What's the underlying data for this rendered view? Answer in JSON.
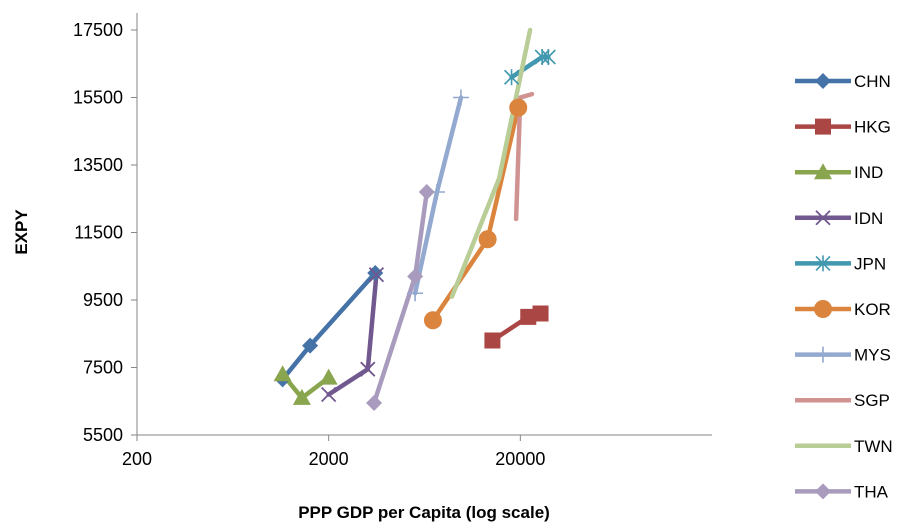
{
  "chart_data": {
    "type": "line",
    "xlabel": "PPP GDP per Capita (log scale)",
    "ylabel": "EXPY",
    "x_scale": "log",
    "xlim": [
      200,
      200000
    ],
    "ylim": [
      5500,
      17500
    ],
    "x_ticks": [
      "200",
      "2000",
      "20000"
    ],
    "y_ticks": [
      "5500",
      "7500",
      "9500",
      "11500",
      "13500",
      "15500",
      "17500"
    ],
    "grid": false,
    "legend_position": "right",
    "series": [
      {
        "name": "CHN",
        "color": "#4572A7",
        "marker": "diamond",
        "x": [
          1150,
          1600,
          3500
        ],
        "y": [
          7150,
          8150,
          10300
        ]
      },
      {
        "name": "HKG",
        "color": "#AA4643",
        "marker": "square",
        "x": [
          14300,
          22000,
          25500
        ],
        "y": [
          8300,
          9000,
          9100
        ]
      },
      {
        "name": "IND",
        "color": "#89A54E",
        "marker": "triangle",
        "x": [
          1150,
          1450,
          2000
        ],
        "y": [
          7300,
          6600,
          7200
        ]
      },
      {
        "name": "IDN",
        "color": "#71588F",
        "marker": "x",
        "x": [
          2000,
          3200,
          3550
        ],
        "y": [
          6700,
          7450,
          10250
        ]
      },
      {
        "name": "JPN",
        "color": "#4198AF",
        "marker": "asterisk",
        "x": [
          18000,
          26000,
          28000
        ],
        "y": [
          16100,
          16700,
          16700
        ]
      },
      {
        "name": "KOR",
        "color": "#DB843D",
        "marker": "circle",
        "x": [
          7000,
          13500,
          19500
        ],
        "y": [
          8900,
          11300,
          15200
        ]
      },
      {
        "name": "MYS",
        "color": "#93A9CF",
        "marker": "plus",
        "x": [
          5650,
          7350,
          9800
        ],
        "y": [
          9700,
          12700,
          15500
        ]
      },
      {
        "name": "SGP",
        "color": "#D19392",
        "marker": "none",
        "x": [
          19000,
          20000,
          23000
        ],
        "y": [
          11900,
          15500,
          15600
        ]
      },
      {
        "name": "TWN",
        "color": "#B9CD96",
        "marker": "none",
        "x": [
          8800,
          15500,
          22500
        ],
        "y": [
          9600,
          13100,
          17500
        ]
      },
      {
        "name": "THA",
        "color": "#A99BBD",
        "marker": "diamond",
        "x": [
          3450,
          5650,
          6500
        ],
        "y": [
          6450,
          10200,
          12700
        ]
      }
    ]
  }
}
